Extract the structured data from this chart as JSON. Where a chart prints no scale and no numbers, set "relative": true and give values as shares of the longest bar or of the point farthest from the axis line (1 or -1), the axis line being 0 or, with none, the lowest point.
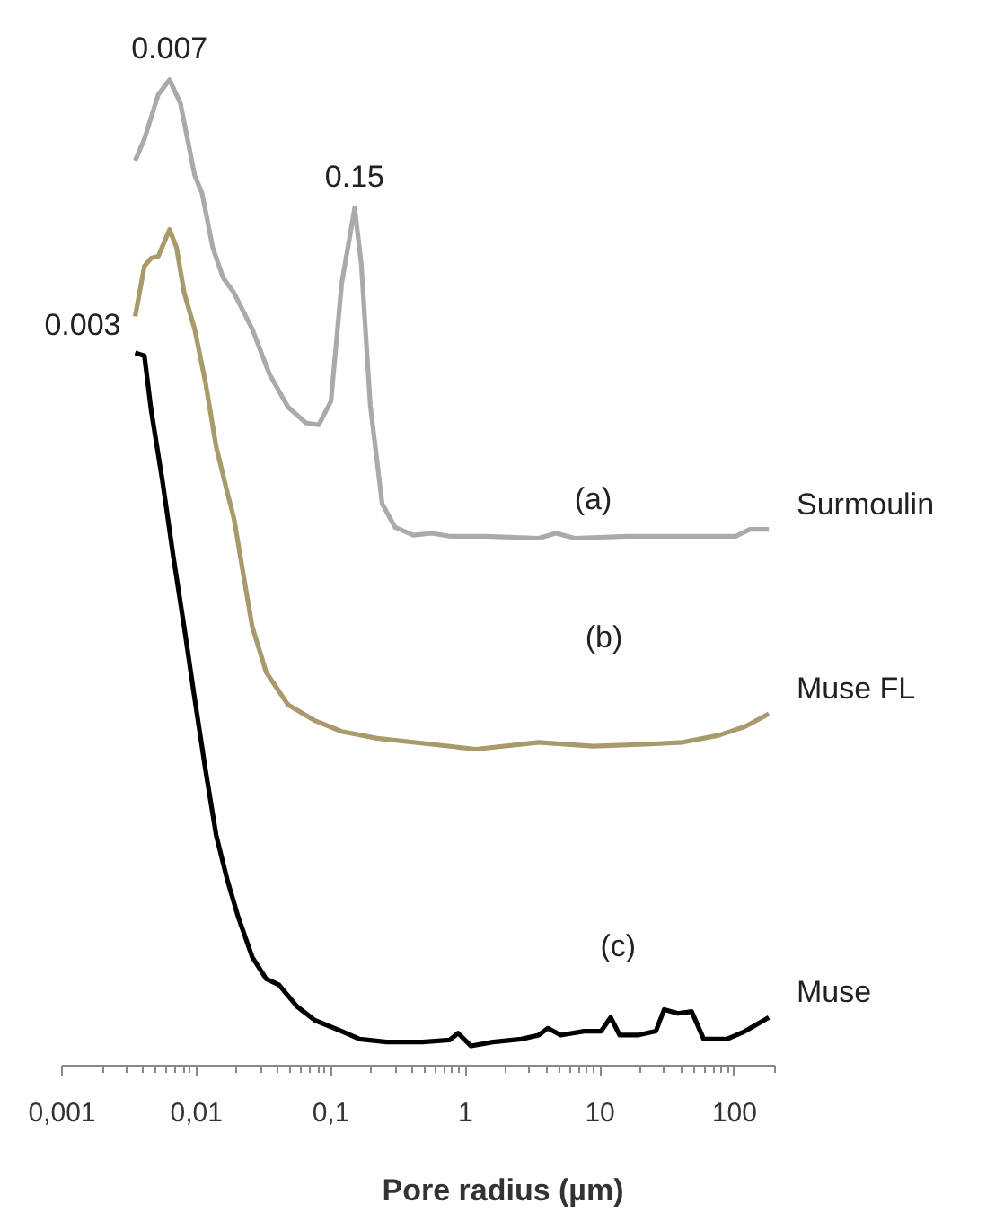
{
  "chart_data": {
    "type": "line",
    "relative": true,
    "xlabel": "Pore radius (µm)",
    "log": "x",
    "grid": false,
    "marker": "none",
    "line_style": "solid",
    "xlim": [
      0.001,
      200
    ],
    "xticks": [
      {
        "value": 0.001,
        "label": "0,001"
      },
      {
        "value": 0.01,
        "label": "0,01"
      },
      {
        "value": 0.1,
        "label": "0,1"
      },
      1,
      10,
      100
    ],
    "series": [
      {
        "name": "Surmoulin",
        "color": "#aaaaaa",
        "x": [
          0.0035,
          0.0041,
          0.0052,
          0.0063,
          0.0076,
          0.0097,
          0.011,
          0.0132,
          0.0158,
          0.019,
          0.026,
          0.035,
          0.048,
          0.065,
          0.081,
          0.1,
          0.12,
          0.15,
          0.168,
          0.196,
          0.24,
          0.3,
          0.41,
          0.56,
          0.76,
          1.4,
          3.5,
          4.7,
          6.5,
          16,
          41,
          102,
          130,
          180
        ],
        "values": [
          0.918,
          0.94,
          0.985,
          1,
          0.976,
          0.903,
          0.885,
          0.83,
          0.799,
          0.784,
          0.747,
          0.701,
          0.668,
          0.652,
          0.65,
          0.674,
          0.793,
          0.87,
          0.813,
          0.67,
          0.57,
          0.546,
          0.538,
          0.54,
          0.537,
          0.537,
          0.535,
          0.54,
          0.535,
          0.537,
          0.537,
          0.537,
          0.544,
          0.544
        ]
      },
      {
        "name": "Muse FL",
        "color": "#a89a6a",
        "x": [
          0.0035,
          0.0041,
          0.0046,
          0.0052,
          0.0063,
          0.0071,
          0.0081,
          0.0097,
          0.0117,
          0.014,
          0.0169,
          0.019,
          0.0222,
          0.026,
          0.033,
          0.048,
          0.076,
          0.12,
          0.22,
          0.56,
          1.2,
          3.5,
          8.9,
          22,
          41,
          76,
          120,
          180
        ],
        "values": [
          0.76,
          0.811,
          0.819,
          0.821,
          0.848,
          0.83,
          0.784,
          0.747,
          0.692,
          0.628,
          0.582,
          0.555,
          0.5,
          0.445,
          0.399,
          0.366,
          0.35,
          0.339,
          0.332,
          0.326,
          0.321,
          0.328,
          0.324,
          0.326,
          0.328,
          0.335,
          0.344,
          0.357
        ]
      },
      {
        "name": "Muse",
        "color": "#000000",
        "x": [
          0.0035,
          0.0041,
          0.0046,
          0.0056,
          0.0067,
          0.0081,
          0.0097,
          0.0117,
          0.014,
          0.0169,
          0.0203,
          0.026,
          0.033,
          0.041,
          0.056,
          0.076,
          0.12,
          0.163,
          0.26,
          0.48,
          0.76,
          0.88,
          1.1,
          1.6,
          2.6,
          3.5,
          4.1,
          5.1,
          7.6,
          10.2,
          12,
          14,
          19,
          26,
          30,
          38,
          48,
          59,
          88,
          120,
          180
        ],
        "values": [
          0.723,
          0.72,
          0.665,
          0.592,
          0.518,
          0.445,
          0.372,
          0.299,
          0.234,
          0.189,
          0.152,
          0.11,
          0.088,
          0.082,
          0.06,
          0.046,
          0.035,
          0.027,
          0.024,
          0.024,
          0.026,
          0.033,
          0.02,
          0.024,
          0.027,
          0.031,
          0.038,
          0.031,
          0.035,
          0.035,
          0.049,
          0.031,
          0.031,
          0.035,
          0.057,
          0.053,
          0.055,
          0.027,
          0.027,
          0.035,
          0.049
        ]
      }
    ],
    "annotations": [
      {
        "text": "0.007",
        "x": 0.0063,
        "y": 1
      },
      {
        "text": "0.15",
        "x": 0.15,
        "y": 0.87
      },
      {
        "text": "0.003",
        "x": 0.0035,
        "y": 0.723
      },
      "(a)",
      "(b)",
      "(c)"
    ]
  }
}
